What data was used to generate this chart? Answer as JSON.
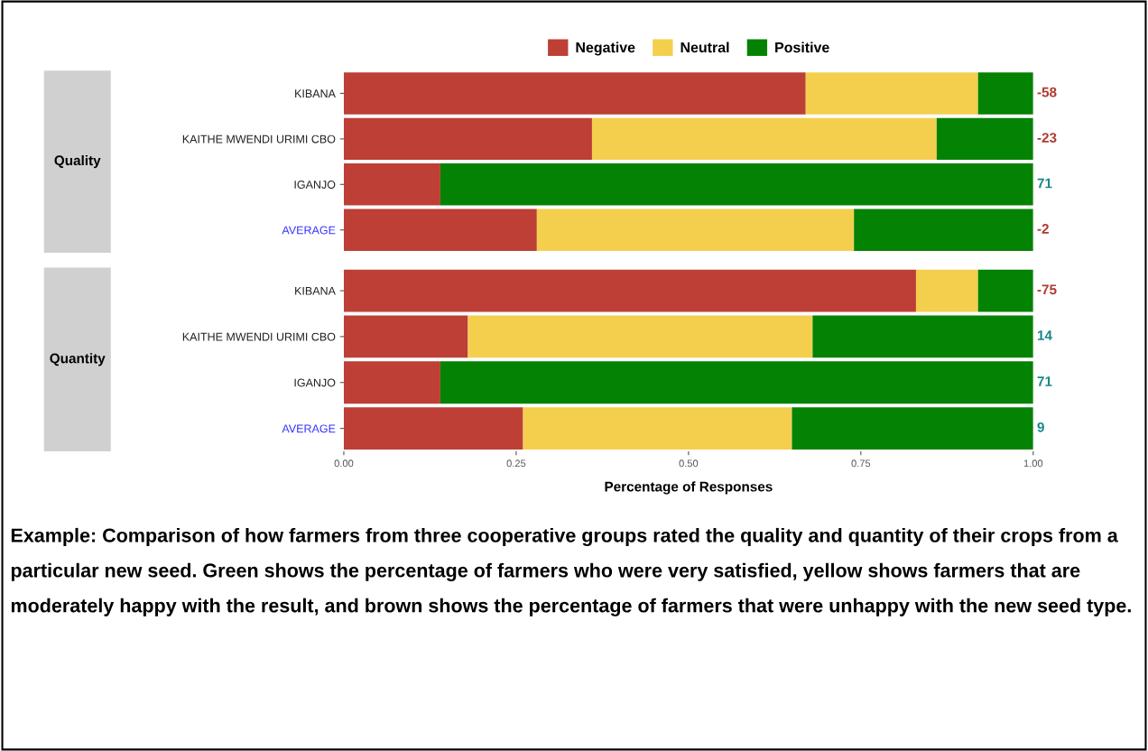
{
  "chart_data": [
    {
      "type": "bar",
      "title": "Quality",
      "orientation": "horizontal",
      "stacked": true,
      "legend": "top",
      "tick_labels": "y",
      "xlim": [
        0,
        1
      ],
      "categories": [
        "KIBANA",
        "KAITHE MWENDI URIMI CBO",
        "IGANJO",
        "AVERAGE"
      ],
      "series": [
        {
          "name": "Negative",
          "color": "#bd3f35",
          "values": [
            0.67,
            0.36,
            0.14,
            0.28
          ]
        },
        {
          "name": "Neutral",
          "color": "#f4cf4e",
          "values": [
            0.25,
            0.5,
            0,
            0.46
          ]
        },
        {
          "name": "Positive",
          "color": "#048204",
          "values": [
            0.08,
            0.14,
            0.86,
            0.26
          ]
        }
      ],
      "annotations": [
        "-58",
        "-23",
        "71",
        "-2"
      ]
    },
    {
      "type": "bar",
      "title": "Quantity",
      "orientation": "horizontal",
      "stacked": true,
      "xlabel": "Percentage of Responses",
      "xlim": [
        0,
        1
      ],
      "xticks": [
        {
          "value": 0,
          "label": "0.00"
        },
        {
          "value": 0.25,
          "label": "0.25"
        },
        {
          "value": 0.5,
          "label": "0.50"
        },
        {
          "value": 0.75,
          "label": "0.75"
        },
        {
          "value": 1,
          "label": "1.00"
        }
      ],
      "categories": [
        "KIBANA",
        "KAITHE MWENDI URIMI CBO",
        "IGANJO",
        "AVERAGE"
      ],
      "series": [
        {
          "name": "Negative",
          "color": "#bd3f35",
          "values": [
            0.83,
            0.18,
            0.14,
            0.26
          ]
        },
        {
          "name": "Neutral",
          "color": "#f4cf4e",
          "values": [
            0.09,
            0.5,
            0,
            0.39
          ]
        },
        {
          "name": "Positive",
          "color": "#048204",
          "values": [
            0.08,
            0.32,
            0.86,
            0.35
          ]
        }
      ],
      "annotations": [
        "-75",
        "14",
        "71",
        "9",
        "Example: Comparison of how farmers from three cooperative groups rated the quality and quantity of their crops from a particular new seed. Green shows the percentage of farmers who were very satisfied, yellow shows farmers that are moderately happy with the result, and brown shows the percentage of farmers that were unhappy with the new seed type."
      ]
    }
  ]
}
